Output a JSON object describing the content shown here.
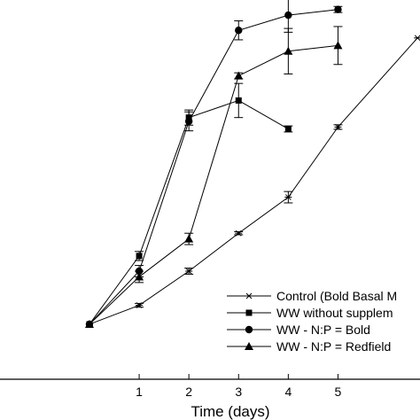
{
  "chart_data": {
    "type": "line",
    "title": "",
    "xlabel": "Time (days)",
    "ylabel": "",
    "xlim": [
      -1.8,
      6.65
    ],
    "ylim": [
      0,
      1
    ],
    "x_ticks": [
      1,
      2,
      3,
      4,
      5
    ],
    "grid": false,
    "legend_position": "bottom-right",
    "series": [
      {
        "name": "Control (Bold Basal M",
        "marker": "x",
        "x": [
          0,
          1,
          2,
          3,
          4,
          5,
          6.6
        ],
        "y": [
          0.145,
          0.195,
          0.285,
          0.385,
          0.48,
          0.665,
          0.9
        ],
        "err": [
          0,
          0.005,
          0.008,
          0.004,
          0.015,
          0.006,
          0
        ]
      },
      {
        "name": "WW without supplem",
        "marker": "square",
        "x": [
          0,
          1,
          2,
          3,
          4
        ],
        "y": [
          0.145,
          0.325,
          0.69,
          0.735,
          0.66
        ],
        "err": [
          0,
          0.012,
          0.02,
          0.045,
          0.008
        ]
      },
      {
        "name": "WW - N:P = Bold",
        "marker": "circle",
        "x": [
          0,
          1,
          2,
          3,
          4,
          5
        ],
        "y": [
          0.145,
          0.285,
          0.68,
          0.92,
          0.96,
          0.975
        ],
        "err": [
          0,
          0.015,
          0.025,
          0.025,
          0.045,
          0.008
        ]
      },
      {
        "name": "WW - N:P = Redfield",
        "marker": "triangle",
        "x": [
          0,
          1,
          2,
          3,
          4,
          5
        ],
        "y": [
          0.145,
          0.27,
          0.37,
          0.8,
          0.865,
          0.88
        ],
        "err": [
          0,
          0.015,
          0.015,
          0.008,
          0.06,
          0.05
        ]
      }
    ]
  }
}
